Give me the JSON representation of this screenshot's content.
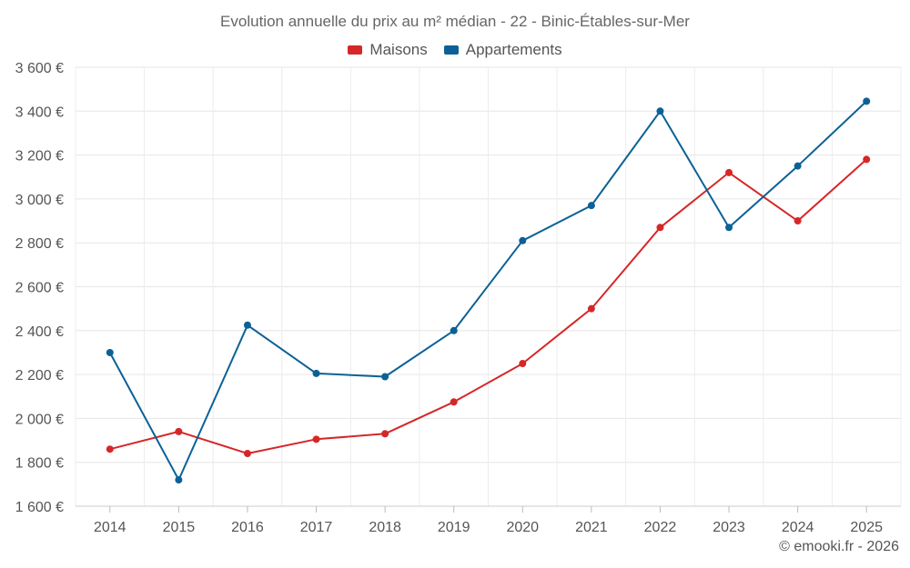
{
  "chart_data": {
    "type": "line",
    "title": "Evolution annuelle du prix au m² médian - 22 - Binic-Étables-sur-Mer",
    "categories": [
      "2014",
      "2015",
      "2016",
      "2017",
      "2018",
      "2019",
      "2020",
      "2021",
      "2022",
      "2023",
      "2024",
      "2025"
    ],
    "series": [
      {
        "name": "Maisons",
        "color": "#d62728",
        "values": [
          1860,
          1940,
          1840,
          1905,
          1930,
          2075,
          2250,
          2500,
          2870,
          3120,
          2900,
          3180
        ]
      },
      {
        "name": "Appartements",
        "color": "#0b6196",
        "values": [
          2300,
          1720,
          2425,
          2205,
          2190,
          2400,
          2810,
          2970,
          3400,
          2870,
          3150,
          3445
        ]
      }
    ],
    "ylim": [
      1600,
      3600
    ],
    "yticks": [
      1600,
      1800,
      2000,
      2200,
      2400,
      2600,
      2800,
      3000,
      3200,
      3400,
      3600
    ],
    "ytick_labels": [
      "1 600 €",
      "1 800 €",
      "2 000 €",
      "2 200 €",
      "2 400 €",
      "2 600 €",
      "2 800 €",
      "3 000 €",
      "3 200 €",
      "3 400 €",
      "3 600 €"
    ],
    "xlabel": "",
    "ylabel": "",
    "grid": true,
    "legend_position": "top-center"
  },
  "copyright": "© emooki.fr - 2026"
}
